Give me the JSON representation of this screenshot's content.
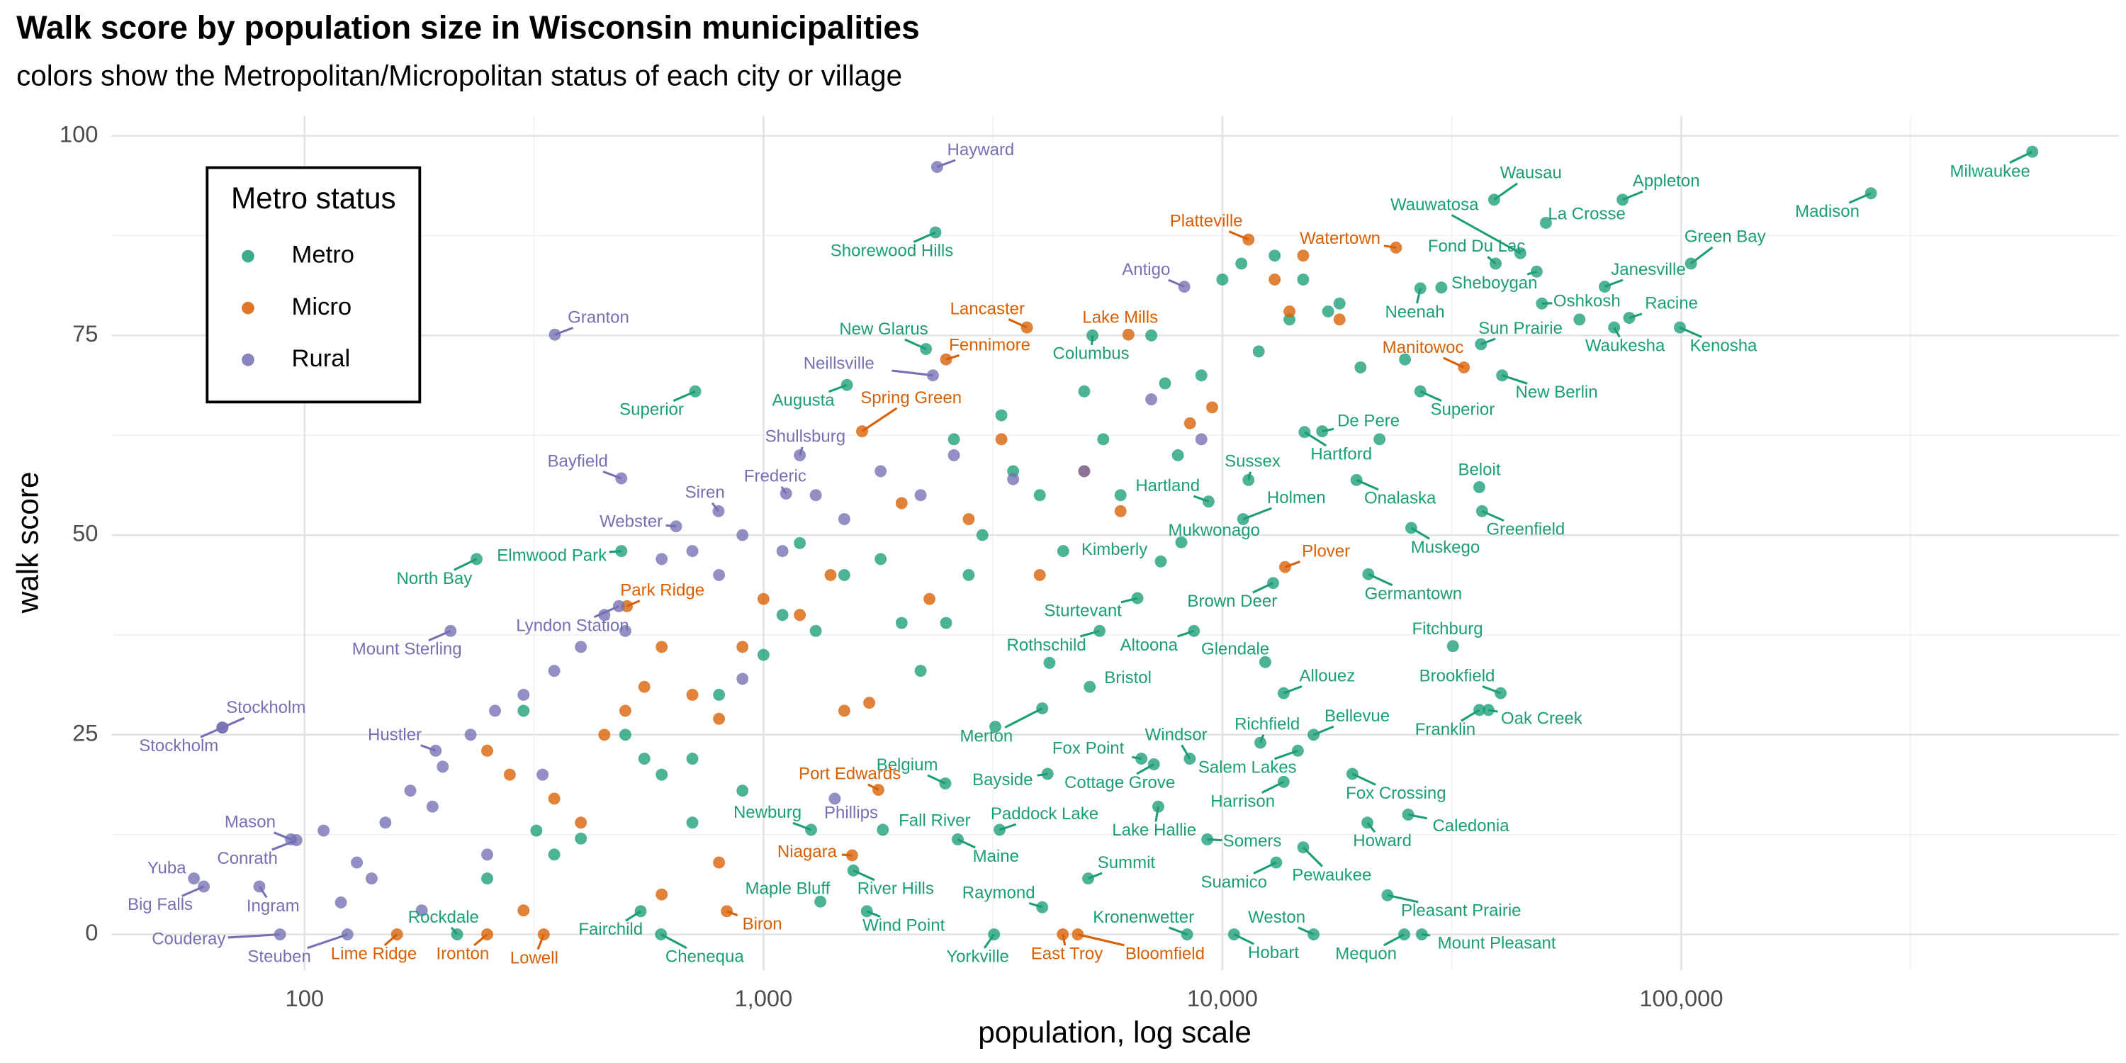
{
  "chart_data": {
    "type": "scatter",
    "title": "Walk score by population size in Wisconsin municipalities",
    "subtitle": "colors show the Metropolitan/Micropolitan status of each city or village",
    "x_label": "population, log scale",
    "y_label": "walk score",
    "legend_title": "Metro status",
    "legend": "top-left",
    "xlog": true,
    "grid": true,
    "xlim": [
      38,
      900000
    ],
    "ylim": [
      -4.5,
      102.5
    ],
    "xticks": [
      100,
      {
        "value": 1000,
        "label": "1,000"
      },
      {
        "value": 10000,
        "label": "10,000"
      },
      {
        "value": 100000,
        "label": "100,000"
      }
    ],
    "yticks": [
      0,
      25,
      50,
      75,
      100
    ],
    "xminorticks": [
      316.2,
      3162,
      31623,
      316228
    ],
    "yminorticks": [
      12.5,
      37.5,
      62.5,
      87.5
    ],
    "series": [
      {
        "name": "Metro",
        "color": "#1b9e77",
        "x": [
          582000,
          259000,
          74500,
          39100,
          50700,
          44600,
          39400,
          105000,
          48400,
          68100,
          49700,
          77000,
          71400,
          99300,
          36600,
          27000,
          40700,
          27000,
          16500,
          15100,
          11400,
          9330,
          11100,
          19600,
          25800,
          8140,
          36300,
          36800,
          7340,
          12900,
          20800,
          6530,
          8670,
          5400,
          31800,
          12400,
          13600,
          5140,
          40400,
          38000,
          36300,
          4050,
          12100,
          15800,
          8490,
          14600,
          6660,
          7090,
          4160,
          2490,
          13600,
          19200,
          20700,
          25400,
          7250,
          9270,
          3270,
          1820,
          1270,
          2650,
          15000,
          13100,
          5100,
          1570,
          1330,
          22900,
          4050,
          1680,
          540,
          215,
          598,
          3180,
          8380,
          10600,
          15800,
          24900,
          27200,
          2370,
          2260,
          5210,
          1520,
          710,
          490,
          237,
          300,
          320,
          400,
          500,
          550,
          600,
          700,
          800,
          900,
          1000,
          1100,
          1300,
          1500,
          1800,
          2000,
          2200,
          2500,
          2800,
          3000,
          3300,
          3500,
          4000,
          4500,
          5000,
          5500,
          6000,
          7000,
          7500,
          8000,
          9000,
          10000,
          11000,
          12000,
          13000,
          14000,
          15000,
          17000,
          18000,
          20000,
          22000,
          25000,
          60000,
          30000,
          1200,
          2600,
          3200,
          4200,
          700,
          250,
          350
        ],
        "values": [
          98,
          92.8,
          92,
          92,
          89.1,
          85.3,
          84,
          84,
          83,
          81.1,
          79,
          77.2,
          76,
          76,
          73.9,
          80.9,
          70,
          68,
          63,
          62.9,
          56.9,
          54.2,
          52,
          56.9,
          50.9,
          49.1,
          56,
          53,
          46.7,
          44,
          45.1,
          42.1,
          38,
          38,
          36.1,
          34.1,
          30.2,
          31,
          30.2,
          28.1,
          28.1,
          28.3,
          24,
          25,
          22,
          23,
          22,
          21.3,
          20.1,
          18.9,
          19.1,
          20.1,
          14,
          15,
          16,
          11.9,
          13.1,
          13.1,
          13.1,
          11.9,
          10.9,
          9,
          7,
          8,
          4.1,
          4.9,
          3.4,
          2.9,
          2.9,
          0,
          0,
          0,
          0,
          0,
          0,
          0,
          0,
          87.9,
          73.3,
          75,
          68.8,
          68,
          48,
          47,
          28,
          13,
          12,
          25,
          22,
          20,
          22,
          30,
          18,
          35,
          40,
          38,
          45,
          47,
          39,
          33,
          39,
          45,
          50,
          65,
          58,
          55,
          48,
          68,
          62,
          55,
          75,
          69,
          60,
          70,
          82,
          84,
          73,
          85,
          77,
          82,
          78,
          79,
          71,
          62,
          72,
          77,
          81,
          49,
          62,
          26,
          34,
          14,
          7,
          10
        ],
        "labels": [
          "Milwaukee",
          "Madison",
          "Appleton",
          "Wausau",
          "La Crosse",
          "Wauwatosa",
          "Fond Du Lac",
          "Green Bay",
          "Sheboygan",
          "Janesville",
          "Oshkosh",
          "Racine",
          "Waukesha",
          "Kenosha",
          "Sun Prairie",
          "Neenah",
          "New Berlin",
          "Superior",
          "De Pere",
          "Hartford",
          "Sussex",
          "Hartland",
          "Holmen",
          "Onalaska",
          "Muskego",
          "Mukwonago",
          "Beloit",
          "Greenfield",
          "Kimberly",
          "Brown Deer",
          "Germantown",
          "Sturtevant",
          "Altoona",
          "Rothschild",
          "Fitchburg",
          "Glendale",
          "Allouez",
          "Bristol",
          "Brookfield",
          "Oak Creek",
          "Franklin",
          "Merton",
          "Richfield",
          "Bellevue",
          "Windsor",
          "Salem Lakes",
          "Fox Point",
          "Cottage Grove",
          "Bayside",
          "Belgium",
          "Harrison",
          "Fox Crossing",
          "Howard",
          "Caledonia",
          "Lake Hallie",
          "Somers",
          "Paddock Lake",
          "Fall River",
          "Newburg",
          "Maine",
          "Pewaukee",
          "Suamico",
          "Summit",
          "River Hills",
          "Maple Bluff",
          "Pleasant Prairie",
          "Raymond",
          "Wind Point",
          "Fairchild",
          "Rockdale",
          "Chenequa",
          "Yorkville",
          "Kronenwetter",
          "Hobart",
          "Weston",
          "Mequon",
          "Mount Pleasant",
          "Shorewood Hills",
          "New Glarus",
          "Columbus",
          "Augusta",
          "Superior",
          "Elmwood Park",
          "North Bay",
          null,
          null,
          null,
          null,
          null,
          null,
          null,
          null,
          null,
          null,
          null,
          null,
          null,
          null,
          null,
          null,
          null,
          null,
          null,
          null,
          null,
          null,
          null,
          null,
          null,
          null,
          null,
          null,
          null,
          null,
          null,
          null,
          null,
          null,
          null,
          null,
          null,
          null,
          null,
          null,
          null,
          null,
          null,
          null,
          null,
          null,
          null,
          null,
          null,
          null
        ]
      },
      {
        "name": "Micro",
        "color": "#d95f02",
        "x": [
          11400,
          23900,
          3750,
          6240,
          2500,
          33600,
          1640,
          504,
          13700,
          1780,
          1560,
          832,
          159,
          250,
          332,
          4490,
          4840,
          250,
          280,
          350,
          400,
          450,
          500,
          550,
          600,
          700,
          800,
          900,
          1000,
          1200,
          1400,
          1700,
          2000,
          2300,
          2800,
          3300,
          4000,
          5000,
          6000,
          8500,
          9500,
          13000,
          14000,
          15000,
          18000,
          600,
          300,
          800,
          1500
        ],
        "values": [
          87,
          86,
          76,
          75.1,
          72,
          71,
          63,
          41.1,
          46,
          18.1,
          9.9,
          2.9,
          0,
          0,
          0,
          0,
          0,
          23,
          20,
          17,
          14,
          25,
          28,
          31,
          36,
          30,
          27,
          36,
          42,
          40,
          45,
          29,
          54,
          42,
          52,
          62,
          45,
          58,
          53,
          64,
          66,
          82,
          78,
          85,
          77,
          5,
          3,
          9,
          28
        ],
        "labels": [
          "Platteville",
          "Watertown",
          "Lancaster",
          "Lake Mills",
          "Fennimore",
          "Manitowoc",
          "Spring Green",
          "Park Ridge",
          "Plover",
          "Port Edwards",
          "Niagara",
          "Biron",
          "Lime Ridge",
          "Ironton",
          "Lowell",
          "East Troy",
          "Bloomfield",
          null,
          null,
          null,
          null,
          null,
          null,
          null,
          null,
          null,
          null,
          null,
          null,
          null,
          null,
          null,
          null,
          null,
          null,
          null,
          null,
          null,
          null,
          null,
          null,
          null,
          null,
          null,
          null,
          null,
          null,
          null,
          null
        ]
      },
      {
        "name": "Rural",
        "color": "#7570b3",
        "x": [
          2390,
          8260,
          351,
          2340,
          1200,
          490,
          1120,
          798,
          645,
          484,
          208,
          66.2,
          66.2,
          193,
          93.4,
          96,
          57.4,
          60.3,
          79.7,
          88.4,
          124,
          1430,
          110,
          120,
          130,
          150,
          170,
          190,
          200,
          230,
          260,
          300,
          350,
          400,
          450,
          500,
          600,
          700,
          800,
          900,
          1100,
          1300,
          1500,
          1800,
          2200,
          2600,
          3500,
          5000,
          7000,
          9000,
          140,
          180,
          250,
          330,
          900
        ],
        "values": [
          96.1,
          81.1,
          75.1,
          70,
          60,
          57.1,
          55.2,
          53,
          51.1,
          41.1,
          38,
          25.9,
          25.9,
          23,
          11.9,
          11.8,
          7,
          6,
          6,
          0,
          0,
          17,
          13,
          4,
          9,
          14,
          18,
          16,
          21,
          25,
          28,
          30,
          33,
          36,
          40,
          38,
          47,
          48,
          45,
          50,
          48,
          55,
          52,
          58,
          55,
          60,
          57,
          58,
          67,
          62,
          7,
          3,
          10,
          20,
          32
        ],
        "labels": [
          "Hayward",
          "Antigo",
          "Granton",
          "Neillsville",
          "Shullsburg",
          "Bayfield",
          "Frederic",
          "Siren",
          "Webster",
          "Lyndon Station",
          "Mount Sterling",
          "Stockholm",
          "Stockholm",
          "Hustler",
          "Mason",
          "Conrath",
          "Yuba",
          "Big Falls",
          "Ingram",
          "Couderay",
          "Steuben",
          "Phillips",
          null,
          null,
          null,
          null,
          null,
          null,
          null,
          null,
          null,
          null,
          null,
          null,
          null,
          null,
          null,
          null,
          null,
          null,
          null,
          null,
          null,
          null,
          null,
          null,
          null,
          null,
          null,
          null,
          null,
          null,
          null,
          null,
          null
        ]
      }
    ]
  }
}
